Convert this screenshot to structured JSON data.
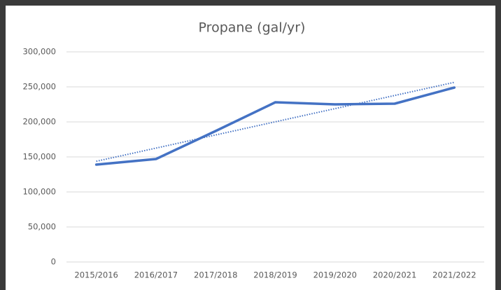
{
  "chart_data": {
    "type": "line",
    "title": "Propane (gal/yr)",
    "categories": [
      "2015/2016",
      "2016/2017",
      "2017/2018",
      "2018/2019",
      "2019/2020",
      "2020/2021",
      "2021/2022"
    ],
    "values": [
      139000,
      147000,
      187000,
      228000,
      225000,
      226000,
      249000
    ],
    "color": "#4472c4",
    "trendline": "linear",
    "ylim": [
      0,
      300000
    ],
    "yticks": [
      0,
      {
        "value": 50000,
        "label": "50,000"
      },
      {
        "value": 100000,
        "label": "100,000"
      },
      {
        "value": 150000,
        "label": "150,000"
      },
      {
        "value": 200000,
        "label": "200,000"
      },
      {
        "value": 250000,
        "label": "250,000"
      },
      {
        "value": 300000,
        "label": "300,000"
      }
    ],
    "grid": true
  }
}
